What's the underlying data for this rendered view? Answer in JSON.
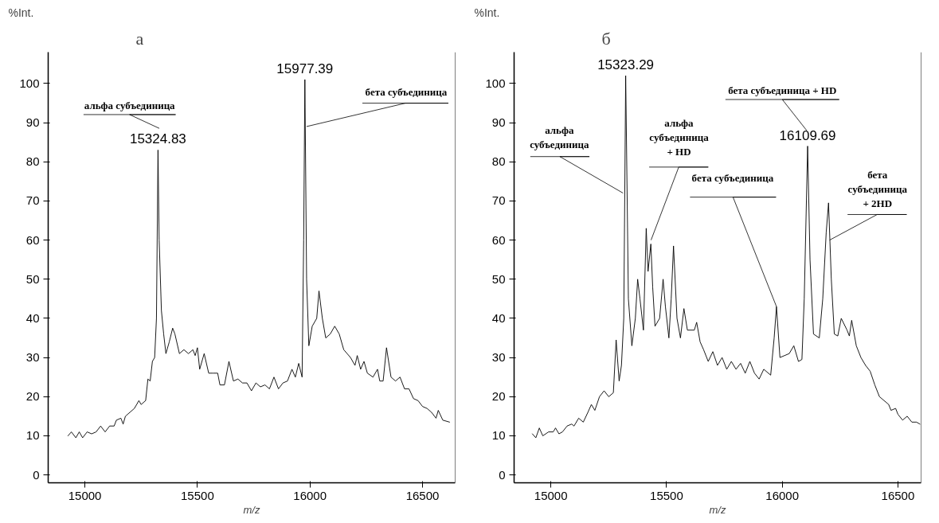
{
  "chart_data": [
    {
      "type": "line",
      "title": "а",
      "xlabel": "m/z",
      "ylabel": "%Int.",
      "xlim": [
        14837,
        16645
      ],
      "ylim": [
        -2,
        108
      ],
      "xticks": [
        15000,
        15500,
        16000,
        16500
      ],
      "yticks": [
        0,
        10,
        20,
        30,
        40,
        50,
        60,
        70,
        80,
        90,
        100
      ],
      "grid": false,
      "series": [
        {
          "color": "#000000",
          "x": [
            14925,
            14940,
            14960,
            14975,
            14990,
            15010,
            15030,
            15050,
            15070,
            15090,
            15110,
            15130,
            15140,
            15160,
            15170,
            15180,
            15200,
            15220,
            15240,
            15250,
            15270,
            15280,
            15290,
            15300,
            15310,
            15318,
            15324.83,
            15330,
            15340,
            15350,
            15360,
            15375,
            15390,
            15400,
            15420,
            15440,
            15460,
            15480,
            15490,
            15500,
            15510,
            15530,
            15550,
            15570,
            15590,
            15600,
            15620,
            15640,
            15660,
            15680,
            15700,
            15720,
            15740,
            15760,
            15780,
            15800,
            15820,
            15840,
            15860,
            15880,
            15900,
            15920,
            15935,
            15950,
            15965,
            15972,
            15977.39,
            15985,
            15995,
            16010,
            16030,
            16040,
            16055,
            16070,
            16090,
            16110,
            16130,
            16150,
            16180,
            16200,
            16210,
            16225,
            16240,
            16255,
            16280,
            16300,
            16310,
            16325,
            16340,
            16360,
            16380,
            16400,
            16420,
            16440,
            16460,
            16480,
            16500,
            16520,
            16540,
            16560,
            16570,
            16590,
            16620
          ],
          "values": [
            10,
            11,
            9.5,
            11,
            9.5,
            11,
            10.5,
            11,
            12.5,
            11,
            12.5,
            12.5,
            14,
            14.5,
            13,
            15,
            16,
            17,
            19,
            18,
            19,
            24.5,
            24,
            29,
            30,
            40,
            83,
            60,
            42,
            36,
            31,
            34,
            37.5,
            36,
            31,
            32,
            31,
            32,
            30.5,
            32.5,
            27,
            31,
            26,
            26,
            26,
            23,
            23,
            29,
            24,
            24.5,
            23.5,
            23.5,
            21.5,
            23.5,
            22.5,
            23,
            22,
            25,
            22,
            23.5,
            24,
            27,
            25,
            28.5,
            25,
            60,
            101,
            50,
            33,
            38,
            40,
            47,
            40,
            35,
            36,
            38,
            36,
            32,
            30,
            28,
            30.5,
            27,
            29,
            26,
            25,
            27,
            24,
            24,
            32.5,
            25,
            24,
            25,
            22,
            22,
            19.5,
            19,
            17.5,
            17,
            16,
            14.5,
            16.5,
            14,
            13.5
          ]
        }
      ],
      "annotations": [
        {
          "text": "15324.83",
          "x": 15324.83,
          "y": 83
        },
        {
          "text": "15977.39",
          "x": 15977.39,
          "y": 101
        },
        "альфа субъединица",
        {
          "text": "бета субъединица",
          "x": 15985,
          "y": 89
        }
      ]
    },
    {
      "type": "line",
      "title": "б",
      "xlabel": "m/z",
      "ylabel": "%Int.",
      "xlim": [
        14841,
        16600
      ],
      "ylim": [
        -2,
        108
      ],
      "xticks": [
        15000,
        15500,
        16000,
        16500
      ],
      "yticks": [
        0,
        10,
        20,
        30,
        40,
        50,
        60,
        70,
        80,
        90,
        100
      ],
      "grid": false,
      "series": [
        {
          "color": "#000000",
          "x": [
            14920,
            14935,
            14950,
            14965,
            14990,
            15010,
            15020,
            15035,
            15050,
            15070,
            15090,
            15100,
            15120,
            15140,
            15160,
            15175,
            15190,
            15210,
            15230,
            15250,
            15270,
            15282,
            15295,
            15305,
            15315,
            15323.29,
            15335,
            15350,
            15365,
            15375,
            15385,
            15400,
            15412,
            15420,
            15432,
            15440,
            15450,
            15470,
            15485,
            15495,
            15510,
            15520,
            15530,
            15545,
            15560,
            15575,
            15590,
            15620,
            15630,
            15645,
            15660,
            15680,
            15700,
            15720,
            15740,
            15760,
            15780,
            15800,
            15820,
            15840,
            15860,
            15880,
            15900,
            15920,
            15950,
            15965,
            15975,
            15990,
            16010,
            16030,
            16050,
            16070,
            16085,
            16095,
            16109.69,
            16120,
            16135,
            16160,
            16175,
            16190,
            16200,
            16212,
            16225,
            16240,
            16255,
            16280,
            16290,
            16300,
            16320,
            16340,
            16360,
            16380,
            16400,
            16420,
            16440,
            16460,
            16470,
            16490,
            16500,
            16520,
            16540,
            16560,
            16580,
            16595
          ],
          "values": [
            10.5,
            9.5,
            12,
            10,
            11,
            11,
            12,
            10.5,
            11,
            12.5,
            13,
            12.5,
            14.5,
            13.5,
            16,
            18,
            16.5,
            20,
            21.5,
            20,
            21,
            34.5,
            24,
            28,
            40,
            102,
            45,
            33,
            40,
            50,
            45,
            37,
            63,
            52,
            59,
            48,
            38,
            40,
            50,
            43,
            35,
            45,
            58.5,
            40,
            35,
            42.5,
            37,
            37,
            39,
            34,
            32,
            29,
            31.5,
            28,
            30,
            27,
            29,
            27,
            28.5,
            26,
            29,
            26,
            24.5,
            27,
            25.5,
            35,
            43,
            30,
            30.5,
            31,
            33,
            29,
            29.5,
            45,
            84,
            55,
            36,
            35,
            45,
            62,
            69.5,
            50,
            36,
            35.5,
            40,
            37,
            35.5,
            39.5,
            33,
            30,
            28,
            26.5,
            23,
            20,
            19,
            18,
            16.5,
            17,
            15.5,
            14,
            15,
            13.5,
            13.5,
            13
          ]
        }
      ],
      "annotations": [
        {
          "text": "15323.29",
          "x": 15323.29,
          "y": 102
        },
        {
          "text": "16109.69",
          "x": 16109.69,
          "y": 84
        },
        {
          "text": "альфа\nсубъединица",
          "x": 15312,
          "y": 72
        },
        {
          "text": "альфа\nсубъединица\n+ HD",
          "x": 15433,
          "y": 60
        },
        {
          "text": "бета субъединица",
          "x": 15975,
          "y": 43
        },
        "бета субъединица + HD",
        {
          "text": "бета\nсубъединица\n+ 2HD",
          "x": 16205,
          "y": 60
        }
      ]
    }
  ]
}
